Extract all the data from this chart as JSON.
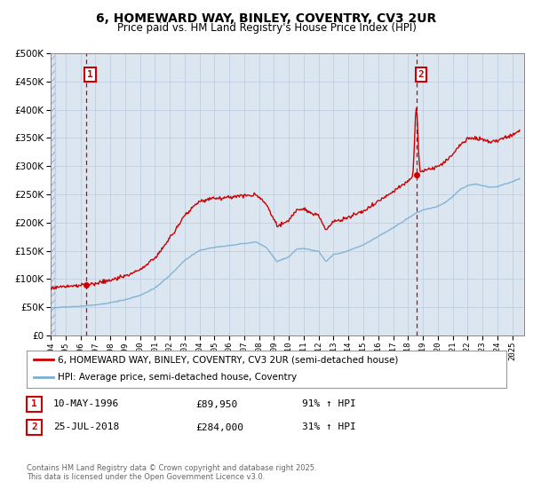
{
  "title": "6, HOMEWARD WAY, BINLEY, COVENTRY, CV3 2UR",
  "subtitle": "Price paid vs. HM Land Registry's House Price Index (HPI)",
  "legend_line1": "6, HOMEWARD WAY, BINLEY, COVENTRY, CV3 2UR (semi-detached house)",
  "legend_line2": "HPI: Average price, semi-detached house, Coventry",
  "annotation1_date": "10-MAY-1996",
  "annotation1_price": "£89,950",
  "annotation1_hpi": "91% ↑ HPI",
  "annotation2_date": "25-JUL-2018",
  "annotation2_price": "£284,000",
  "annotation2_hpi": "31% ↑ HPI",
  "footer": "Contains HM Land Registry data © Crown copyright and database right 2025.\nThis data is licensed under the Open Government Licence v3.0.",
  "sale_color": "#cc0000",
  "hpi_color": "#7bafd4",
  "vline_color": "#cc0000",
  "fig_bg": "#f0f4f8",
  "plot_bg": "#dce6f1",
  "hatch_bg": "#c8d8e8",
  "ylim": [
    0,
    500000
  ],
  "yticks": [
    0,
    50000,
    100000,
    150000,
    200000,
    250000,
    300000,
    350000,
    400000,
    450000,
    500000
  ],
  "sale1_year": 1996.36,
  "sale1_price": 89950,
  "sale2_year": 2018.56,
  "sale2_price": 284000,
  "scale1": 1.91,
  "scale2": 1.31
}
